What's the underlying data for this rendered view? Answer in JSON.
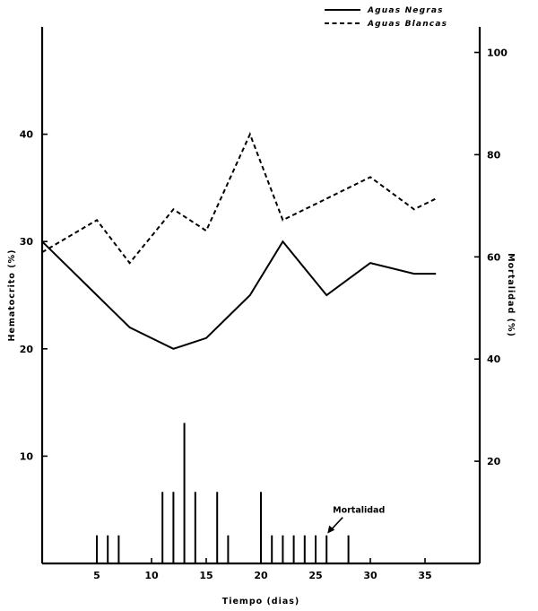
{
  "chart_data": {
    "type": "line",
    "xlabel": "Tiempo (dias)",
    "ylabel_left": "Hematocrito (%)",
    "ylabel_right": "Mortalidad (%)",
    "xlim": [
      0,
      40
    ],
    "ylim_left": [
      0,
      50
    ],
    "ylim_right": [
      0,
      105
    ],
    "x_ticks": [
      5,
      10,
      15,
      20,
      25,
      30,
      35
    ],
    "y_left_ticks": [
      10,
      20,
      30,
      40
    ],
    "y_right_ticks": [
      20,
      40,
      60,
      80,
      100
    ],
    "grid": false,
    "legend_position": "top-right",
    "series": [
      {
        "name": "Aguas Negras",
        "style": "solid",
        "axis": "left",
        "x": [
          0,
          5,
          8,
          12,
          15,
          19,
          22,
          26,
          30,
          34,
          36
        ],
        "y": [
          30,
          25,
          22,
          20,
          21,
          25,
          30,
          25,
          28,
          27,
          27
        ]
      },
      {
        "name": "Aguas Blancas",
        "style": "dashed",
        "axis": "left",
        "x": [
          0,
          5,
          8,
          12,
          15,
          19,
          22,
          26,
          30,
          34,
          36
        ],
        "y": [
          29,
          32,
          28,
          33,
          31,
          40,
          32,
          34,
          36,
          33,
          34
        ]
      },
      {
        "name": "Mortalidad",
        "type": "bar",
        "axis": "right",
        "x": [
          5,
          6,
          7,
          11,
          12,
          13,
          14,
          16,
          17,
          20,
          21,
          22,
          23,
          24,
          25,
          26,
          28
        ],
        "y": [
          5.5,
          5.5,
          5.5,
          14,
          14,
          27.5,
          14,
          14,
          5.5,
          14,
          5.5,
          5.5,
          5.5,
          5.5,
          5.5,
          5.5,
          5.5
        ]
      }
    ],
    "annotations": [
      {
        "text": "Mortalidad",
        "x": 26,
        "y_right": 5.5
      }
    ]
  }
}
